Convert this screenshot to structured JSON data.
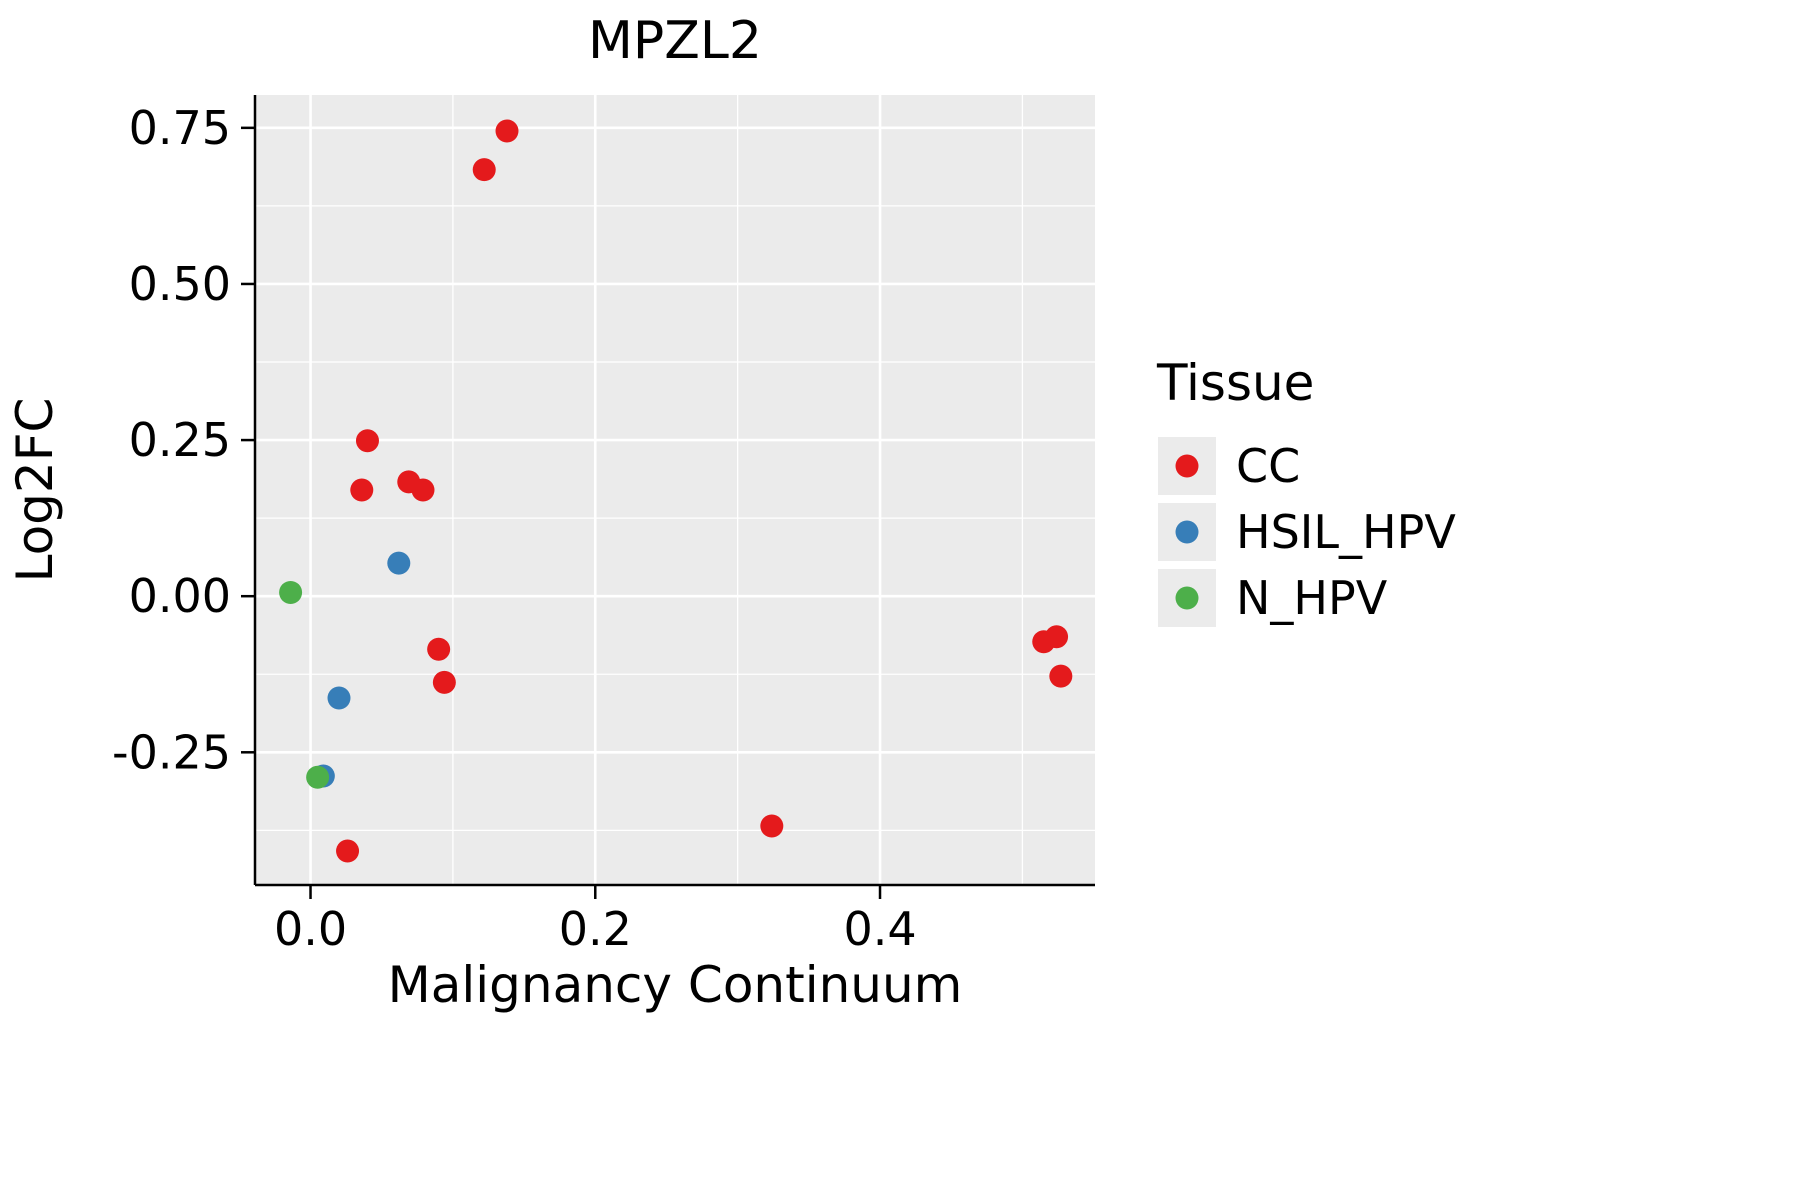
{
  "chart_data": {
    "type": "scatter",
    "title": "MPZL2",
    "xlabel": "Malignancy Continuum",
    "ylabel": "Log2FC",
    "legend_title": "Tissue",
    "legend_position": "right",
    "grid": true,
    "panel_color": "#EBEBEB",
    "grid_color": "#FFFFFF",
    "xlim": [
      -0.039,
      0.551
    ],
    "ylim": [
      -0.4625,
      0.8026
    ],
    "x_ticks": [
      {
        "value": 0.0,
        "label": "0.0"
      },
      {
        "value": 0.2,
        "label": "0.2"
      },
      {
        "value": 0.4,
        "label": "0.4"
      }
    ],
    "y_ticks": [
      {
        "value": -0.25,
        "label": "-0.25"
      },
      {
        "value": 0.0,
        "label": "0.00"
      },
      {
        "value": 0.25,
        "label": "0.25"
      },
      {
        "value": 0.5,
        "label": "0.50"
      },
      {
        "value": 0.75,
        "label": "0.75"
      }
    ],
    "x_minor_ticks": [
      0.1,
      0.3,
      0.5
    ],
    "y_minor_ticks": [
      -0.375,
      -0.125,
      0.125,
      0.375,
      0.625
    ],
    "series": [
      {
        "name": "CC",
        "color": "#E41A1C",
        "points": [
          [
            0.138,
            0.745
          ],
          [
            0.122,
            0.683
          ],
          [
            0.04,
            0.249
          ],
          [
            0.036,
            0.17
          ],
          [
            0.069,
            0.183
          ],
          [
            0.079,
            0.17
          ],
          [
            0.09,
            -0.085
          ],
          [
            0.094,
            -0.138
          ],
          [
            0.515,
            -0.073
          ],
          [
            0.524,
            -0.065
          ],
          [
            0.527,
            -0.128
          ],
          [
            0.324,
            -0.368
          ],
          [
            0.026,
            -0.408
          ]
        ]
      },
      {
        "name": "HSIL_HPV",
        "color": "#377EB8",
        "points": [
          [
            0.062,
            0.053
          ],
          [
            0.02,
            -0.163
          ],
          [
            0.009,
            -0.288
          ]
        ]
      },
      {
        "name": "N_HPV",
        "color": "#4DAF4A",
        "points": [
          [
            -0.014,
            0.006
          ],
          [
            0.005,
            -0.29
          ]
        ]
      }
    ]
  }
}
